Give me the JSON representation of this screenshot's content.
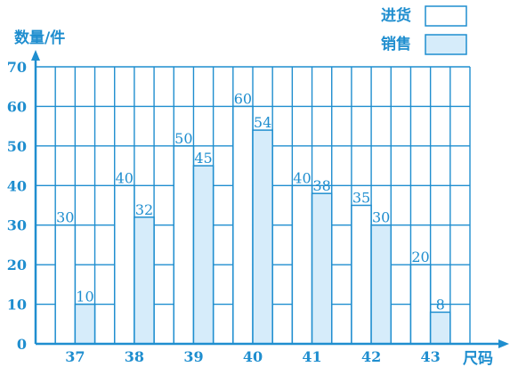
{
  "chart_data": {
    "type": "bar",
    "ylabel": "数量/件",
    "xlabel": "尺码",
    "categories": [
      "37",
      "38",
      "39",
      "40",
      "41",
      "42",
      "43"
    ],
    "series": [
      {
        "name": "进货",
        "values": [
          30,
          40,
          50,
          60,
          40,
          35,
          20
        ],
        "color": "#ffffff"
      },
      {
        "name": "销售",
        "values": [
          10,
          32,
          45,
          54,
          38,
          30,
          8
        ],
        "color": "#d6ecfa"
      }
    ],
    "ylim": [
      0,
      70
    ],
    "yticks": [
      0,
      10,
      20,
      30,
      40,
      50,
      60,
      70
    ],
    "grid": true,
    "legend": "top-right"
  },
  "colors": {
    "line": "#1f8ecf",
    "sales_fill": "#d6ecfa",
    "stock_fill": "#ffffff"
  }
}
